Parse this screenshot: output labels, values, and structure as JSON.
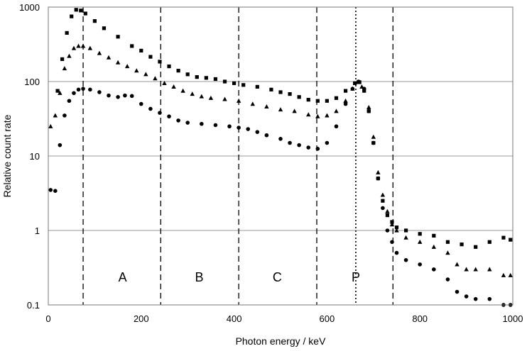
{
  "chart_data": {
    "type": "scatter",
    "title": "",
    "xlabel": "Photon energy / keV",
    "ylabel": "Relative count rate",
    "xlim": [
      0,
      1000
    ],
    "ylim": [
      0.1,
      1000
    ],
    "yscale": "log",
    "grid": "horizontal",
    "xticks": [
      "0",
      "200",
      "400",
      "600",
      "800",
      "1000"
    ],
    "yticks": [
      "0.1",
      "1",
      "10",
      "100",
      "1000"
    ],
    "region_labels": [
      {
        "text": "A",
        "x": 160
      },
      {
        "text": "B",
        "x": 325
      },
      {
        "text": "C",
        "x": 493
      },
      {
        "text": "P",
        "x": 662
      }
    ],
    "dashed_lines": [
      75,
      242,
      410,
      578,
      742
    ],
    "dotted_lines": [
      662
    ],
    "series": [
      {
        "marker": "square",
        "points": [
          [
            20,
            75
          ],
          [
            30,
            200
          ],
          [
            40,
            450
          ],
          [
            50,
            750
          ],
          [
            60,
            920
          ],
          [
            70,
            900
          ],
          [
            80,
            820
          ],
          [
            100,
            650
          ],
          [
            120,
            520
          ],
          [
            150,
            400
          ],
          [
            180,
            300
          ],
          [
            200,
            260
          ],
          [
            220,
            215
          ],
          [
            240,
            185
          ],
          [
            260,
            160
          ],
          [
            280,
            140
          ],
          [
            300,
            125
          ],
          [
            320,
            115
          ],
          [
            340,
            112
          ],
          [
            360,
            108
          ],
          [
            380,
            100
          ],
          [
            400,
            95
          ],
          [
            420,
            90
          ],
          [
            450,
            85
          ],
          [
            480,
            78
          ],
          [
            500,
            72
          ],
          [
            520,
            68
          ],
          [
            540,
            62
          ],
          [
            560,
            57
          ],
          [
            580,
            55
          ],
          [
            600,
            55
          ],
          [
            620,
            60
          ],
          [
            640,
            75
          ],
          [
            660,
            95
          ],
          [
            670,
            98
          ],
          [
            680,
            75
          ],
          [
            690,
            40
          ],
          [
            700,
            15
          ],
          [
            710,
            5
          ],
          [
            720,
            2.5
          ],
          [
            730,
            1.6
          ],
          [
            740,
            1.3
          ],
          [
            750,
            1.1
          ],
          [
            770,
            1.0
          ],
          [
            800,
            0.9
          ],
          [
            830,
            0.85
          ],
          [
            860,
            0.7
          ],
          [
            890,
            0.65
          ],
          [
            920,
            0.6
          ],
          [
            950,
            0.7
          ],
          [
            980,
            0.8
          ],
          [
            995,
            0.75
          ]
        ]
      },
      {
        "marker": "triangle",
        "points": [
          [
            5,
            25
          ],
          [
            15,
            35
          ],
          [
            25,
            70
          ],
          [
            35,
            150
          ],
          [
            45,
            220
          ],
          [
            55,
            280
          ],
          [
            65,
            300
          ],
          [
            75,
            300
          ],
          [
            90,
            280
          ],
          [
            110,
            240
          ],
          [
            130,
            210
          ],
          [
            150,
            180
          ],
          [
            170,
            160
          ],
          [
            190,
            140
          ],
          [
            210,
            125
          ],
          [
            230,
            110
          ],
          [
            250,
            95
          ],
          [
            270,
            85
          ],
          [
            290,
            75
          ],
          [
            310,
            68
          ],
          [
            330,
            63
          ],
          [
            350,
            60
          ],
          [
            380,
            58
          ],
          [
            410,
            55
          ],
          [
            440,
            50
          ],
          [
            470,
            46
          ],
          [
            500,
            42
          ],
          [
            530,
            40
          ],
          [
            560,
            36
          ],
          [
            580,
            34
          ],
          [
            600,
            35
          ],
          [
            620,
            40
          ],
          [
            640,
            55
          ],
          [
            655,
            80
          ],
          [
            665,
            98
          ],
          [
            675,
            85
          ],
          [
            690,
            45
          ],
          [
            700,
            18
          ],
          [
            710,
            6
          ],
          [
            720,
            3
          ],
          [
            730,
            1.8
          ],
          [
            740,
            1.2
          ],
          [
            750,
            1.0
          ],
          [
            770,
            0.8
          ],
          [
            800,
            0.7
          ],
          [
            830,
            0.6
          ],
          [
            860,
            0.5
          ],
          [
            880,
            0.35
          ],
          [
            900,
            0.3
          ],
          [
            920,
            0.3
          ],
          [
            950,
            0.3
          ],
          [
            980,
            0.25
          ],
          [
            995,
            0.25
          ]
        ]
      },
      {
        "marker": "circle",
        "points": [
          [
            5,
            3.5
          ],
          [
            15,
            3.4
          ],
          [
            25,
            14
          ],
          [
            35,
            35
          ],
          [
            45,
            55
          ],
          [
            55,
            70
          ],
          [
            65,
            78
          ],
          [
            75,
            80
          ],
          [
            90,
            78
          ],
          [
            110,
            72
          ],
          [
            130,
            65
          ],
          [
            150,
            62
          ],
          [
            165,
            65
          ],
          [
            180,
            64
          ],
          [
            200,
            50
          ],
          [
            220,
            43
          ],
          [
            240,
            38
          ],
          [
            260,
            34
          ],
          [
            280,
            30
          ],
          [
            300,
            28
          ],
          [
            330,
            27
          ],
          [
            360,
            26
          ],
          [
            390,
            25
          ],
          [
            410,
            24
          ],
          [
            430,
            23
          ],
          [
            450,
            21
          ],
          [
            470,
            19
          ],
          [
            500,
            17
          ],
          [
            520,
            15
          ],
          [
            540,
            14
          ],
          [
            560,
            13
          ],
          [
            580,
            12.5
          ],
          [
            600,
            15
          ],
          [
            620,
            25
          ],
          [
            640,
            50
          ],
          [
            655,
            80
          ],
          [
            668,
            100
          ],
          [
            680,
            80
          ],
          [
            690,
            40
          ],
          [
            700,
            15
          ],
          [
            710,
            5
          ],
          [
            720,
            2
          ],
          [
            730,
            1.0
          ],
          [
            740,
            0.7
          ],
          [
            750,
            0.5
          ],
          [
            770,
            0.4
          ],
          [
            800,
            0.35
          ],
          [
            830,
            0.3
          ],
          [
            860,
            0.22
          ],
          [
            880,
            0.15
          ],
          [
            900,
            0.13
          ],
          [
            920,
            0.12
          ],
          [
            950,
            0.12
          ],
          [
            980,
            0.1
          ],
          [
            995,
            0.1
          ]
        ]
      }
    ]
  }
}
